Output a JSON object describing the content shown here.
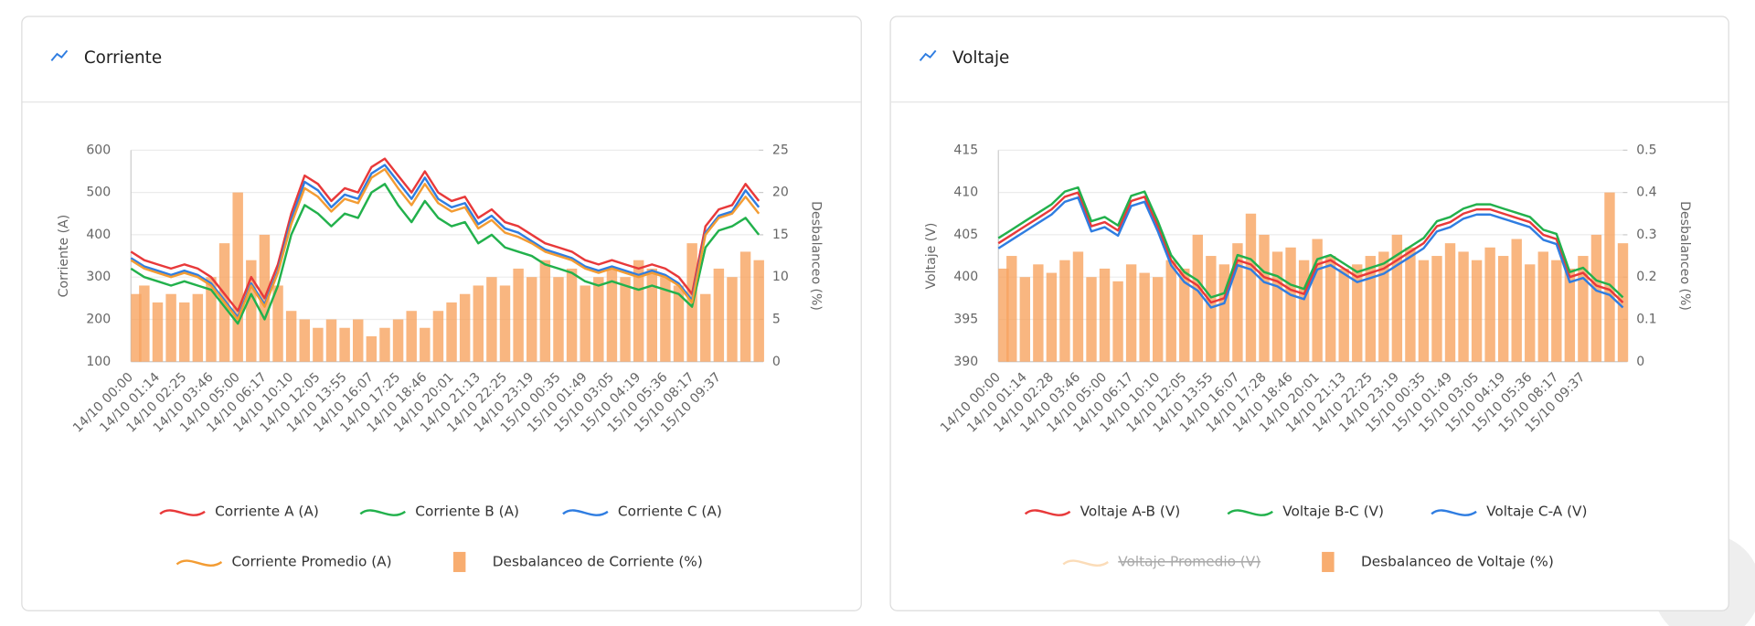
{
  "chart_data": [
    {
      "type": "line",
      "title": "Corriente",
      "ylabel": "Corriente (A)",
      "y2label": "Desbalanceo (%)",
      "categories": [
        "14/10 00:00",
        null,
        "14/10 01:14",
        null,
        "14/10 02:25",
        null,
        "14/10 03:46",
        null,
        "14/10 05:00",
        null,
        "14/10 06:17",
        null,
        "14/10 10:10",
        null,
        "14/10 12:05",
        null,
        "14/10 13:55",
        null,
        "14/10 16:07",
        null,
        "14/10 17:25",
        null,
        "14/10 18:46",
        null,
        "14/10 20:01",
        null,
        "14/10 21:13",
        null,
        "14/10 22:25",
        null,
        "14/10 23:19",
        null,
        "15/10 00:35",
        null,
        "15/10 01:49",
        null,
        "15/10 03:05",
        null,
        "15/10 04:19",
        null,
        "15/10 05:36",
        null,
        "15/10 08:17",
        null,
        "15/10 09:37",
        null,
        null,
        null
      ],
      "ylim": [
        100,
        600
      ],
      "yticks": [
        100,
        200,
        300,
        400,
        500,
        600
      ],
      "y2lim": [
        0,
        25
      ],
      "y2ticks": [
        0,
        5,
        10,
        15,
        20,
        25
      ],
      "grid": true,
      "series": [
        {
          "name": "Corriente A (A)",
          "color": "#e8393a",
          "values": [
            360,
            340,
            330,
            320,
            330,
            320,
            300,
            260,
            220,
            300,
            250,
            330,
            450,
            540,
            520,
            480,
            510,
            500,
            560,
            580,
            540,
            500,
            550,
            500,
            480,
            490,
            440,
            460,
            430,
            420,
            400,
            380,
            370,
            360,
            340,
            330,
            340,
            330,
            320,
            330,
            320,
            300,
            260,
            420,
            460,
            470,
            520,
            480
          ]
        },
        {
          "name": "Corriente B (A)",
          "color": "#22b14c",
          "values": [
            320,
            300,
            290,
            280,
            290,
            280,
            270,
            230,
            190,
            260,
            200,
            280,
            400,
            470,
            450,
            420,
            450,
            440,
            500,
            520,
            470,
            430,
            480,
            440,
            420,
            430,
            380,
            400,
            370,
            360,
            350,
            330,
            320,
            310,
            290,
            280,
            290,
            280,
            270,
            280,
            270,
            260,
            230,
            370,
            410,
            420,
            440,
            400
          ]
        },
        {
          "name": "Corriente C (A)",
          "color": "#2f7de1",
          "values": [
            345,
            325,
            315,
            305,
            315,
            305,
            285,
            245,
            205,
            285,
            235,
            315,
            435,
            525,
            505,
            465,
            495,
            485,
            545,
            565,
            525,
            485,
            535,
            485,
            465,
            475,
            425,
            445,
            415,
            405,
            385,
            365,
            355,
            345,
            325,
            315,
            325,
            315,
            305,
            315,
            305,
            285,
            245,
            405,
            445,
            455,
            505,
            465
          ]
        },
        {
          "name": "Corriente Promedio (A)",
          "color": "#f39c33",
          "values": [
            340,
            320,
            310,
            300,
            310,
            300,
            280,
            240,
            200,
            280,
            230,
            310,
            425,
            510,
            490,
            455,
            485,
            475,
            535,
            555,
            510,
            470,
            520,
            475,
            455,
            465,
            415,
            435,
            405,
            395,
            380,
            360,
            350,
            340,
            320,
            310,
            320,
            310,
            300,
            310,
            300,
            280,
            240,
            400,
            440,
            450,
            490,
            450
          ]
        },
        {
          "name": "Desbalanceo de Corriente (%)",
          "type": "bar",
          "axis": "y2",
          "color": "#f7a460",
          "values": [
            8,
            9,
            7,
            8,
            7,
            8,
            10,
            14,
            20,
            12,
            15,
            9,
            6,
            5,
            4,
            5,
            4,
            5,
            3,
            4,
            5,
            6,
            4,
            6,
            7,
            8,
            9,
            10,
            9,
            11,
            10,
            12,
            10,
            11,
            9,
            10,
            11,
            10,
            12,
            11,
            10,
            9,
            14,
            8,
            11,
            10,
            13,
            12
          ]
        }
      ]
    },
    {
      "type": "line",
      "title": "Voltaje",
      "ylabel": "Voltaje (V)",
      "y2label": "Desbalanceo (%)",
      "categories": [
        "14/10 00:00",
        null,
        "14/10 01:14",
        null,
        "14/10 02:28",
        null,
        "14/10 03:46",
        null,
        "14/10 05:00",
        null,
        "14/10 06:17",
        null,
        "14/10 10:10",
        null,
        "14/10 12:05",
        null,
        "14/10 13:55",
        null,
        "14/10 16:07",
        null,
        "14/10 17:28",
        null,
        "14/10 18:46",
        null,
        "14/10 20:01",
        null,
        "14/10 21:13",
        null,
        "14/10 22:25",
        null,
        "14/10 23:19",
        null,
        "15/10 00:35",
        null,
        "15/10 01:49",
        null,
        "15/10 03:05",
        null,
        "15/10 04:19",
        null,
        "15/10 05:36",
        null,
        "15/10 08:17",
        null,
        "15/10 09:37",
        null,
        null,
        null
      ],
      "ylim": [
        390,
        415
      ],
      "yticks": [
        390,
        395,
        400,
        405,
        410,
        415
      ],
      "y2lim": [
        0,
        0.5
      ],
      "y2ticks": [
        0,
        0.1,
        0.2,
        0.3,
        0.4,
        0.5
      ],
      "grid": true,
      "series": [
        {
          "name": "Voltaje A-B (V)",
          "color": "#e8393a",
          "values": [
            404,
            405,
            406,
            407,
            408,
            409.5,
            410,
            406,
            406.5,
            405.5,
            409,
            409.5,
            406,
            402,
            400,
            399,
            397,
            397.5,
            402,
            401.5,
            400,
            399.5,
            398.5,
            398,
            401.5,
            402,
            401,
            400,
            400.5,
            401,
            402,
            403,
            404,
            406,
            406.5,
            407.5,
            408,
            408,
            407.5,
            407,
            406.5,
            405,
            404.5,
            400,
            400.5,
            399,
            398.5,
            397
          ]
        },
        {
          "name": "Voltaje B-C (V)",
          "color": "#22b14c",
          "values": [
            404.6,
            405.6,
            406.6,
            407.6,
            408.6,
            410.1,
            410.6,
            406.6,
            407.1,
            406.1,
            409.6,
            410.1,
            406.6,
            402.6,
            400.6,
            399.6,
            397.6,
            398.1,
            402.6,
            402.1,
            400.6,
            400.1,
            399.1,
            398.6,
            402.1,
            402.6,
            401.6,
            400.6,
            401.1,
            401.6,
            402.6,
            403.6,
            404.6,
            406.6,
            407.1,
            408.1,
            408.6,
            408.6,
            408.1,
            407.6,
            407.1,
            405.6,
            405.1,
            400.6,
            401.1,
            399.6,
            399.1,
            397.6
          ]
        },
        {
          "name": "Voltaje C-A (V)",
          "color": "#2f7de1",
          "values": [
            403.4,
            404.4,
            405.4,
            406.4,
            407.4,
            408.9,
            409.4,
            405.4,
            405.9,
            404.9,
            408.4,
            408.9,
            405.4,
            401.4,
            399.4,
            398.4,
            396.4,
            396.9,
            401.4,
            400.9,
            399.4,
            398.9,
            397.9,
            397.4,
            400.9,
            401.4,
            400.4,
            399.4,
            399.9,
            400.4,
            401.4,
            402.4,
            403.4,
            405.4,
            405.9,
            406.9,
            407.4,
            407.4,
            406.9,
            406.4,
            405.9,
            404.4,
            403.9,
            399.4,
            399.9,
            398.4,
            397.9,
            396.4
          ]
        },
        {
          "name": "Voltaje Promedio (V)",
          "color": "#f39c33",
          "hidden": true
        },
        {
          "name": "Desbalanceo de Voltaje (%)",
          "type": "bar",
          "axis": "y2",
          "color": "#f7a460",
          "values": [
            0.22,
            0.25,
            0.2,
            0.23,
            0.21,
            0.24,
            0.26,
            0.2,
            0.22,
            0.19,
            0.23,
            0.21,
            0.2,
            0.24,
            0.22,
            0.3,
            0.25,
            0.23,
            0.28,
            0.35,
            0.3,
            0.26,
            0.27,
            0.24,
            0.29,
            0.25,
            0.22,
            0.23,
            0.25,
            0.26,
            0.3,
            0.27,
            0.24,
            0.25,
            0.28,
            0.26,
            0.24,
            0.27,
            0.25,
            0.29,
            0.23,
            0.26,
            0.24,
            0.22,
            0.25,
            0.3,
            0.4,
            0.28
          ]
        }
      ]
    }
  ]
}
